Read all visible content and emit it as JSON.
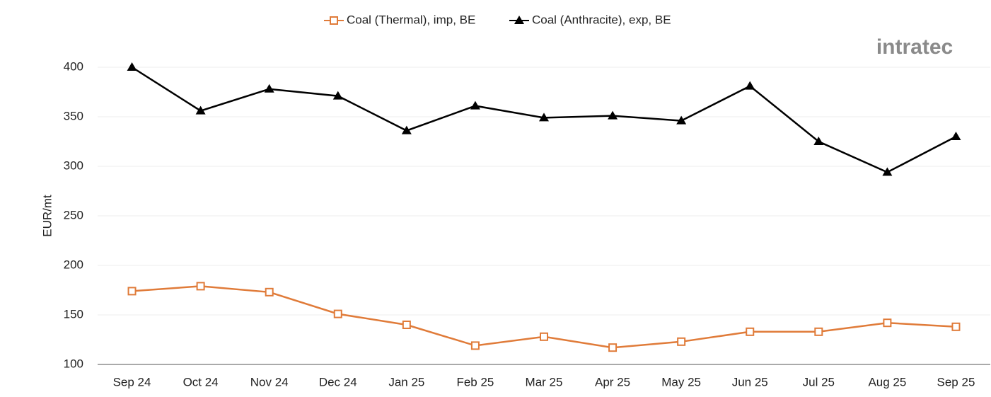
{
  "chart_data": {
    "type": "line",
    "watermark": "intratec",
    "ylabel": "EUR/mt",
    "categories": [
      "Sep 24",
      "Oct 24",
      "Nov 24",
      "Dec 24",
      "Jan 25",
      "Feb 25",
      "Mar 25",
      "Apr 25",
      "May 25",
      "Jun 25",
      "Jul 25",
      "Aug 25",
      "Sep 25"
    ],
    "series": [
      {
        "name": "Coal (Thermal), imp, BE",
        "color": "#e07b39",
        "marker": "square",
        "values": [
          174,
          179,
          173,
          151,
          140,
          119,
          128,
          117,
          123,
          133,
          133,
          142,
          138
        ]
      },
      {
        "name": "Coal (Anthracite), exp, BE",
        "color": "#000000",
        "marker": "triangle",
        "values": [
          400,
          356,
          378,
          371,
          336,
          361,
          349,
          351,
          346,
          381,
          325,
          294,
          330
        ]
      }
    ],
    "ylim": [
      100,
      400
    ],
    "yticks": [
      100,
      150,
      200,
      250,
      300,
      350,
      400
    ],
    "grid": true,
    "legend": "top"
  }
}
